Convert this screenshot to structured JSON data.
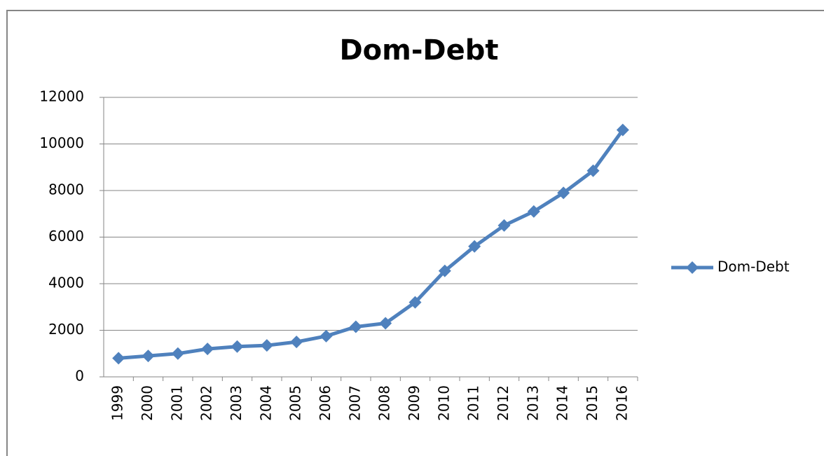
{
  "chart_data": {
    "type": "line",
    "title": "Dom-Debt",
    "categories": [
      "1999",
      "2000",
      "2001",
      "2002",
      "2003",
      "2004",
      "2005",
      "2006",
      "2007",
      "2008",
      "2009",
      "2010",
      "2011",
      "2012",
      "2013",
      "2014",
      "2015",
      "2016"
    ],
    "series": [
      {
        "name": "Dom-Debt",
        "color": "#4f81bd",
        "values": [
          800,
          900,
          1000,
          1200,
          1300,
          1350,
          1500,
          1750,
          2150,
          2300,
          3200,
          4550,
          5600,
          6500,
          7100,
          7900,
          8850,
          10600
        ]
      }
    ],
    "ylim": [
      0,
      12000
    ],
    "yticks": [
      0,
      2000,
      4000,
      6000,
      8000,
      10000,
      12000
    ],
    "grid": true,
    "legend": "right"
  }
}
